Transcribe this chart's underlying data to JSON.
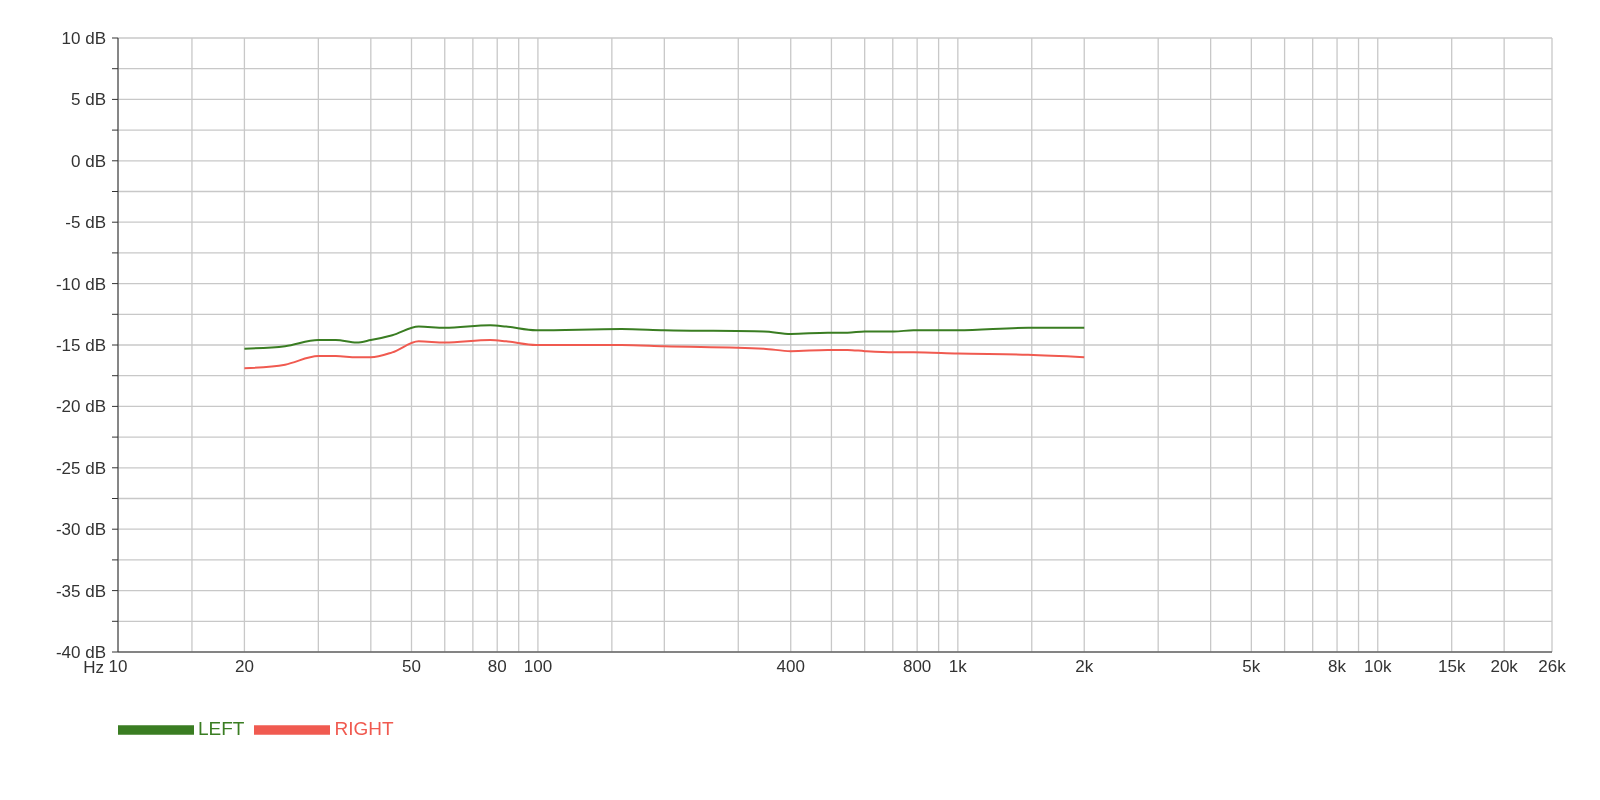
{
  "chart_data": {
    "type": "line",
    "xlabel": "Hz",
    "x": [
      20,
      25,
      30,
      33,
      37,
      40,
      45,
      52,
      60,
      77,
      84,
      99,
      158,
      200,
      345,
      400,
      490,
      546,
      600,
      705,
      784,
      1000,
      1470,
      2000
    ],
    "series": [
      {
        "name": "LEFT",
        "color": "#3a7d22",
        "values": [
          -15.3,
          -15.1,
          -14.6,
          -14.6,
          -14.8,
          -14.6,
          -14.2,
          -13.5,
          -13.6,
          -13.4,
          -13.5,
          -13.8,
          -13.7,
          -13.8,
          -13.9,
          -14.1,
          -14.0,
          -14.0,
          -13.9,
          -13.9,
          -13.8,
          -13.8,
          -13.6,
          -13.6
        ]
      },
      {
        "name": "RIGHT",
        "color": "#f05a50",
        "values": [
          -16.9,
          -16.6,
          -15.9,
          -15.9,
          -16.0,
          -16.0,
          -15.6,
          -14.7,
          -14.8,
          -14.6,
          -14.7,
          -15.0,
          -15.0,
          -15.1,
          -15.3,
          -15.5,
          -15.4,
          -15.4,
          -15.5,
          -15.6,
          -15.6,
          -15.7,
          -15.8,
          -16.0
        ]
      }
    ],
    "log": "x",
    "xlim": [
      10,
      26000
    ],
    "xticks": [
      {
        "value": 10,
        "label": "10"
      },
      {
        "value": 15,
        "label": null
      },
      {
        "value": 20,
        "label": "20"
      },
      {
        "value": 30,
        "label": null
      },
      {
        "value": 40,
        "label": null
      },
      {
        "value": 50,
        "label": "50"
      },
      {
        "value": 60,
        "label": null
      },
      {
        "value": 70,
        "label": null
      },
      {
        "value": 80,
        "label": "80"
      },
      {
        "value": 90,
        "label": null
      },
      {
        "value": 100,
        "label": "100"
      },
      {
        "value": 150,
        "label": null
      },
      {
        "value": 200,
        "label": null
      },
      {
        "value": 300,
        "label": null
      },
      {
        "value": 400,
        "label": "400"
      },
      {
        "value": 500,
        "label": null
      },
      {
        "value": 600,
        "label": null
      },
      {
        "value": 700,
        "label": null
      },
      {
        "value": 800,
        "label": "800"
      },
      {
        "value": 900,
        "label": null
      },
      {
        "value": 1000,
        "label": "1k"
      },
      {
        "value": 1500,
        "label": null
      },
      {
        "value": 2000,
        "label": "2k"
      },
      {
        "value": 3000,
        "label": null
      },
      {
        "value": 4000,
        "label": null
      },
      {
        "value": 5000,
        "label": "5k"
      },
      {
        "value": 6000,
        "label": null
      },
      {
        "value": 7000,
        "label": null
      },
      {
        "value": 8000,
        "label": "8k"
      },
      {
        "value": 9000,
        "label": null
      },
      {
        "value": 10000,
        "label": "10k"
      },
      {
        "value": 15000,
        "label": "15k"
      },
      {
        "value": 20000,
        "label": "20k"
      },
      {
        "value": 26000,
        "label": "26k"
      }
    ],
    "ylim": [
      -40,
      10
    ],
    "yticks": [
      {
        "value": -40,
        "label": "-40 dB"
      },
      {
        "value": -37.5,
        "label": null
      },
      {
        "value": -35,
        "label": "-35 dB"
      },
      {
        "value": -32.5,
        "label": null
      },
      {
        "value": -30,
        "label": "-30 dB"
      },
      {
        "value": -27.5,
        "label": null
      },
      {
        "value": -25,
        "label": "-25 dB"
      },
      {
        "value": -22.5,
        "label": null
      },
      {
        "value": -20,
        "label": "-20 dB"
      },
      {
        "value": -17.5,
        "label": null
      },
      {
        "value": -15,
        "label": "-15 dB"
      },
      {
        "value": -12.5,
        "label": null
      },
      {
        "value": -10,
        "label": "-10 dB"
      },
      {
        "value": -7.5,
        "label": null
      },
      {
        "value": -5,
        "label": "-5 dB"
      },
      {
        "value": -2.5,
        "label": null
      },
      {
        "value": 0,
        "label": "0 dB"
      },
      {
        "value": 2.5,
        "label": null
      },
      {
        "value": 5,
        "label": "5 dB"
      },
      {
        "value": 7.5,
        "label": null
      },
      {
        "value": 10,
        "label": "10 dB"
      }
    ],
    "grid": true,
    "legend": "bottom left",
    "marker": "none",
    "line_style": "solid"
  }
}
